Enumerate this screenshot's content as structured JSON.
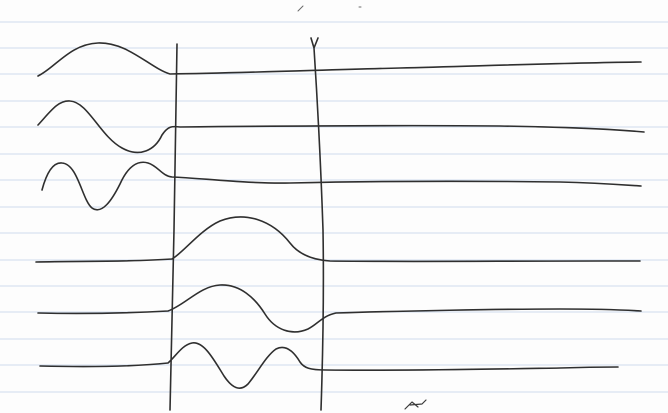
{
  "paper": {
    "rule_color": "#cfdced",
    "ink_color": "#2f2f2f",
    "background": "#fdfdfd"
  },
  "content": {
    "description_visible_text": []
  }
}
